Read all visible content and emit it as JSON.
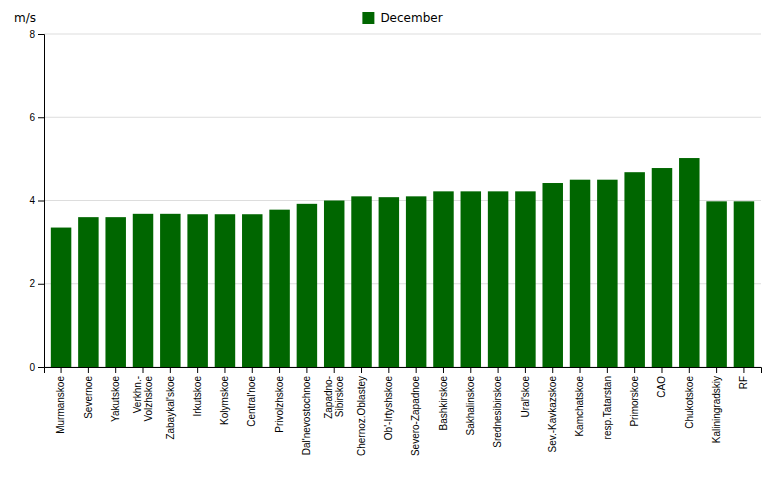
{
  "chart_data": {
    "type": "bar",
    "categories": [
      "Murmanskoe",
      "Severnoe",
      "Yakutskoe",
      "Verkhn.-\nVolzhskoe",
      "Zabaykal'skoe",
      "Irkutskoe",
      "Kolymskoe",
      "Central'noe",
      "Privolzhskoe",
      "Dal'nevostochnoe",
      "Zapadno-\nSibirskoe",
      "Chernoz.Oblastey",
      "Ob'-Irtyshskoe",
      "Severo-Zapadnoe",
      "Bashkirskoe",
      "Sakhalinskoe",
      "Srednesibirskoe",
      "Ural'skoe",
      "Sev.-Kavkazskoe",
      "Kamchatskoe",
      "resp.Tatarstan",
      "Primorskoe",
      "CAO",
      "Chukotskoe",
      "Kaliningradskiy",
      "RF"
    ],
    "values": [
      3.35,
      3.6,
      3.6,
      3.68,
      3.68,
      3.67,
      3.67,
      3.67,
      3.78,
      3.92,
      4.0,
      4.1,
      4.08,
      4.1,
      4.22,
      4.22,
      4.22,
      4.22,
      4.42,
      4.5,
      4.5,
      4.68,
      4.78,
      5.02,
      3.98,
      3.98
    ],
    "color": "#006600",
    "ylabel": "m/s",
    "legend_label": "December",
    "legend": "top",
    "ylim": [
      0,
      8
    ],
    "yticks": [
      0,
      2,
      4,
      6,
      8
    ],
    "grid": true
  }
}
